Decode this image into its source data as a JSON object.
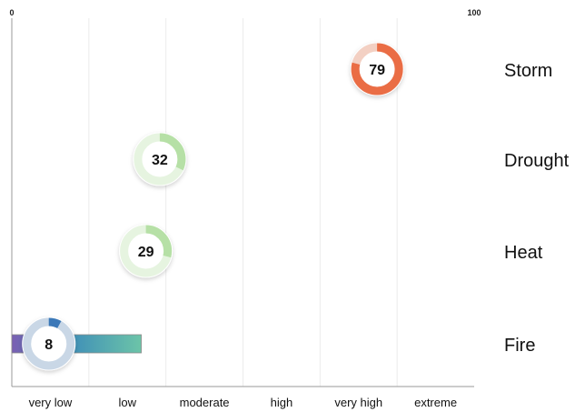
{
  "chart_data": {
    "type": "scatter",
    "axis": {
      "min": 0,
      "max": 100,
      "min_label": "0",
      "max_label": "100"
    },
    "categories": [
      "very low",
      "low",
      "moderate",
      "high",
      "very high",
      "extreme"
    ],
    "grid": true,
    "hazards": [
      {
        "name": "Storm",
        "value": 79,
        "color": "#ea6d45",
        "track_color": "#f3d0c3"
      },
      {
        "name": "Drought",
        "value": 32,
        "color": "#b6e0a6",
        "track_color": "#e6f4e0"
      },
      {
        "name": "Heat",
        "value": 29,
        "color": "#b6e0a6",
        "track_color": "#e6f4e0"
      },
      {
        "name": "Fire",
        "value": 8,
        "color": "#3b78b8",
        "track_color": "#c9d7e6",
        "range_bar": {
          "from": 0,
          "to": 28,
          "gradient": [
            "#7a5fb3",
            "#3f8fb8",
            "#6cc4a8"
          ]
        }
      }
    ]
  }
}
